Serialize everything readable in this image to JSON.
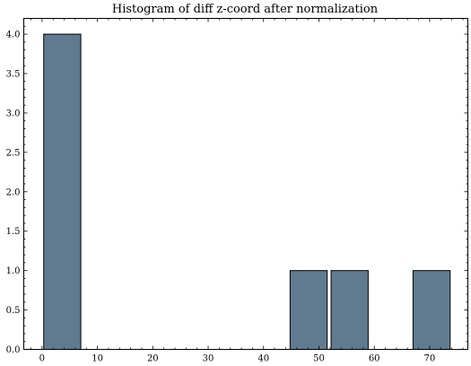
{
  "chart_data": {
    "type": "bar",
    "title": "Histogram of diff z-coord after normalization",
    "xlabel": "",
    "ylabel": "",
    "xlim": [
      -3.3,
      76.9
    ],
    "ylim": [
      0,
      4.2
    ],
    "bin_width": 7.35,
    "bins": [
      {
        "start": 0.3,
        "end": 7.0,
        "count": 4
      },
      {
        "start": 44.8,
        "end": 51.5,
        "count": 1
      },
      {
        "start": 52.2,
        "end": 58.9,
        "count": 1
      },
      {
        "start": 67.0,
        "end": 73.7,
        "count": 1
      }
    ],
    "x_ticks": [
      "0",
      "10",
      "20",
      "30",
      "40",
      "50",
      "60",
      "70"
    ],
    "x_tick_values": [
      0,
      10,
      20,
      30,
      40,
      50,
      60,
      70
    ],
    "y_ticks": [
      "0.0",
      "0.5",
      "1.0",
      "1.5",
      "2.0",
      "2.5",
      "3.0",
      "3.5",
      "4.0"
    ],
    "y_tick_values": [
      0,
      0.5,
      1.0,
      1.5,
      2.0,
      2.5,
      3.0,
      3.5,
      4.0
    ],
    "grid": false,
    "bar_color": "#607b8f",
    "edge_color": "#000000"
  }
}
